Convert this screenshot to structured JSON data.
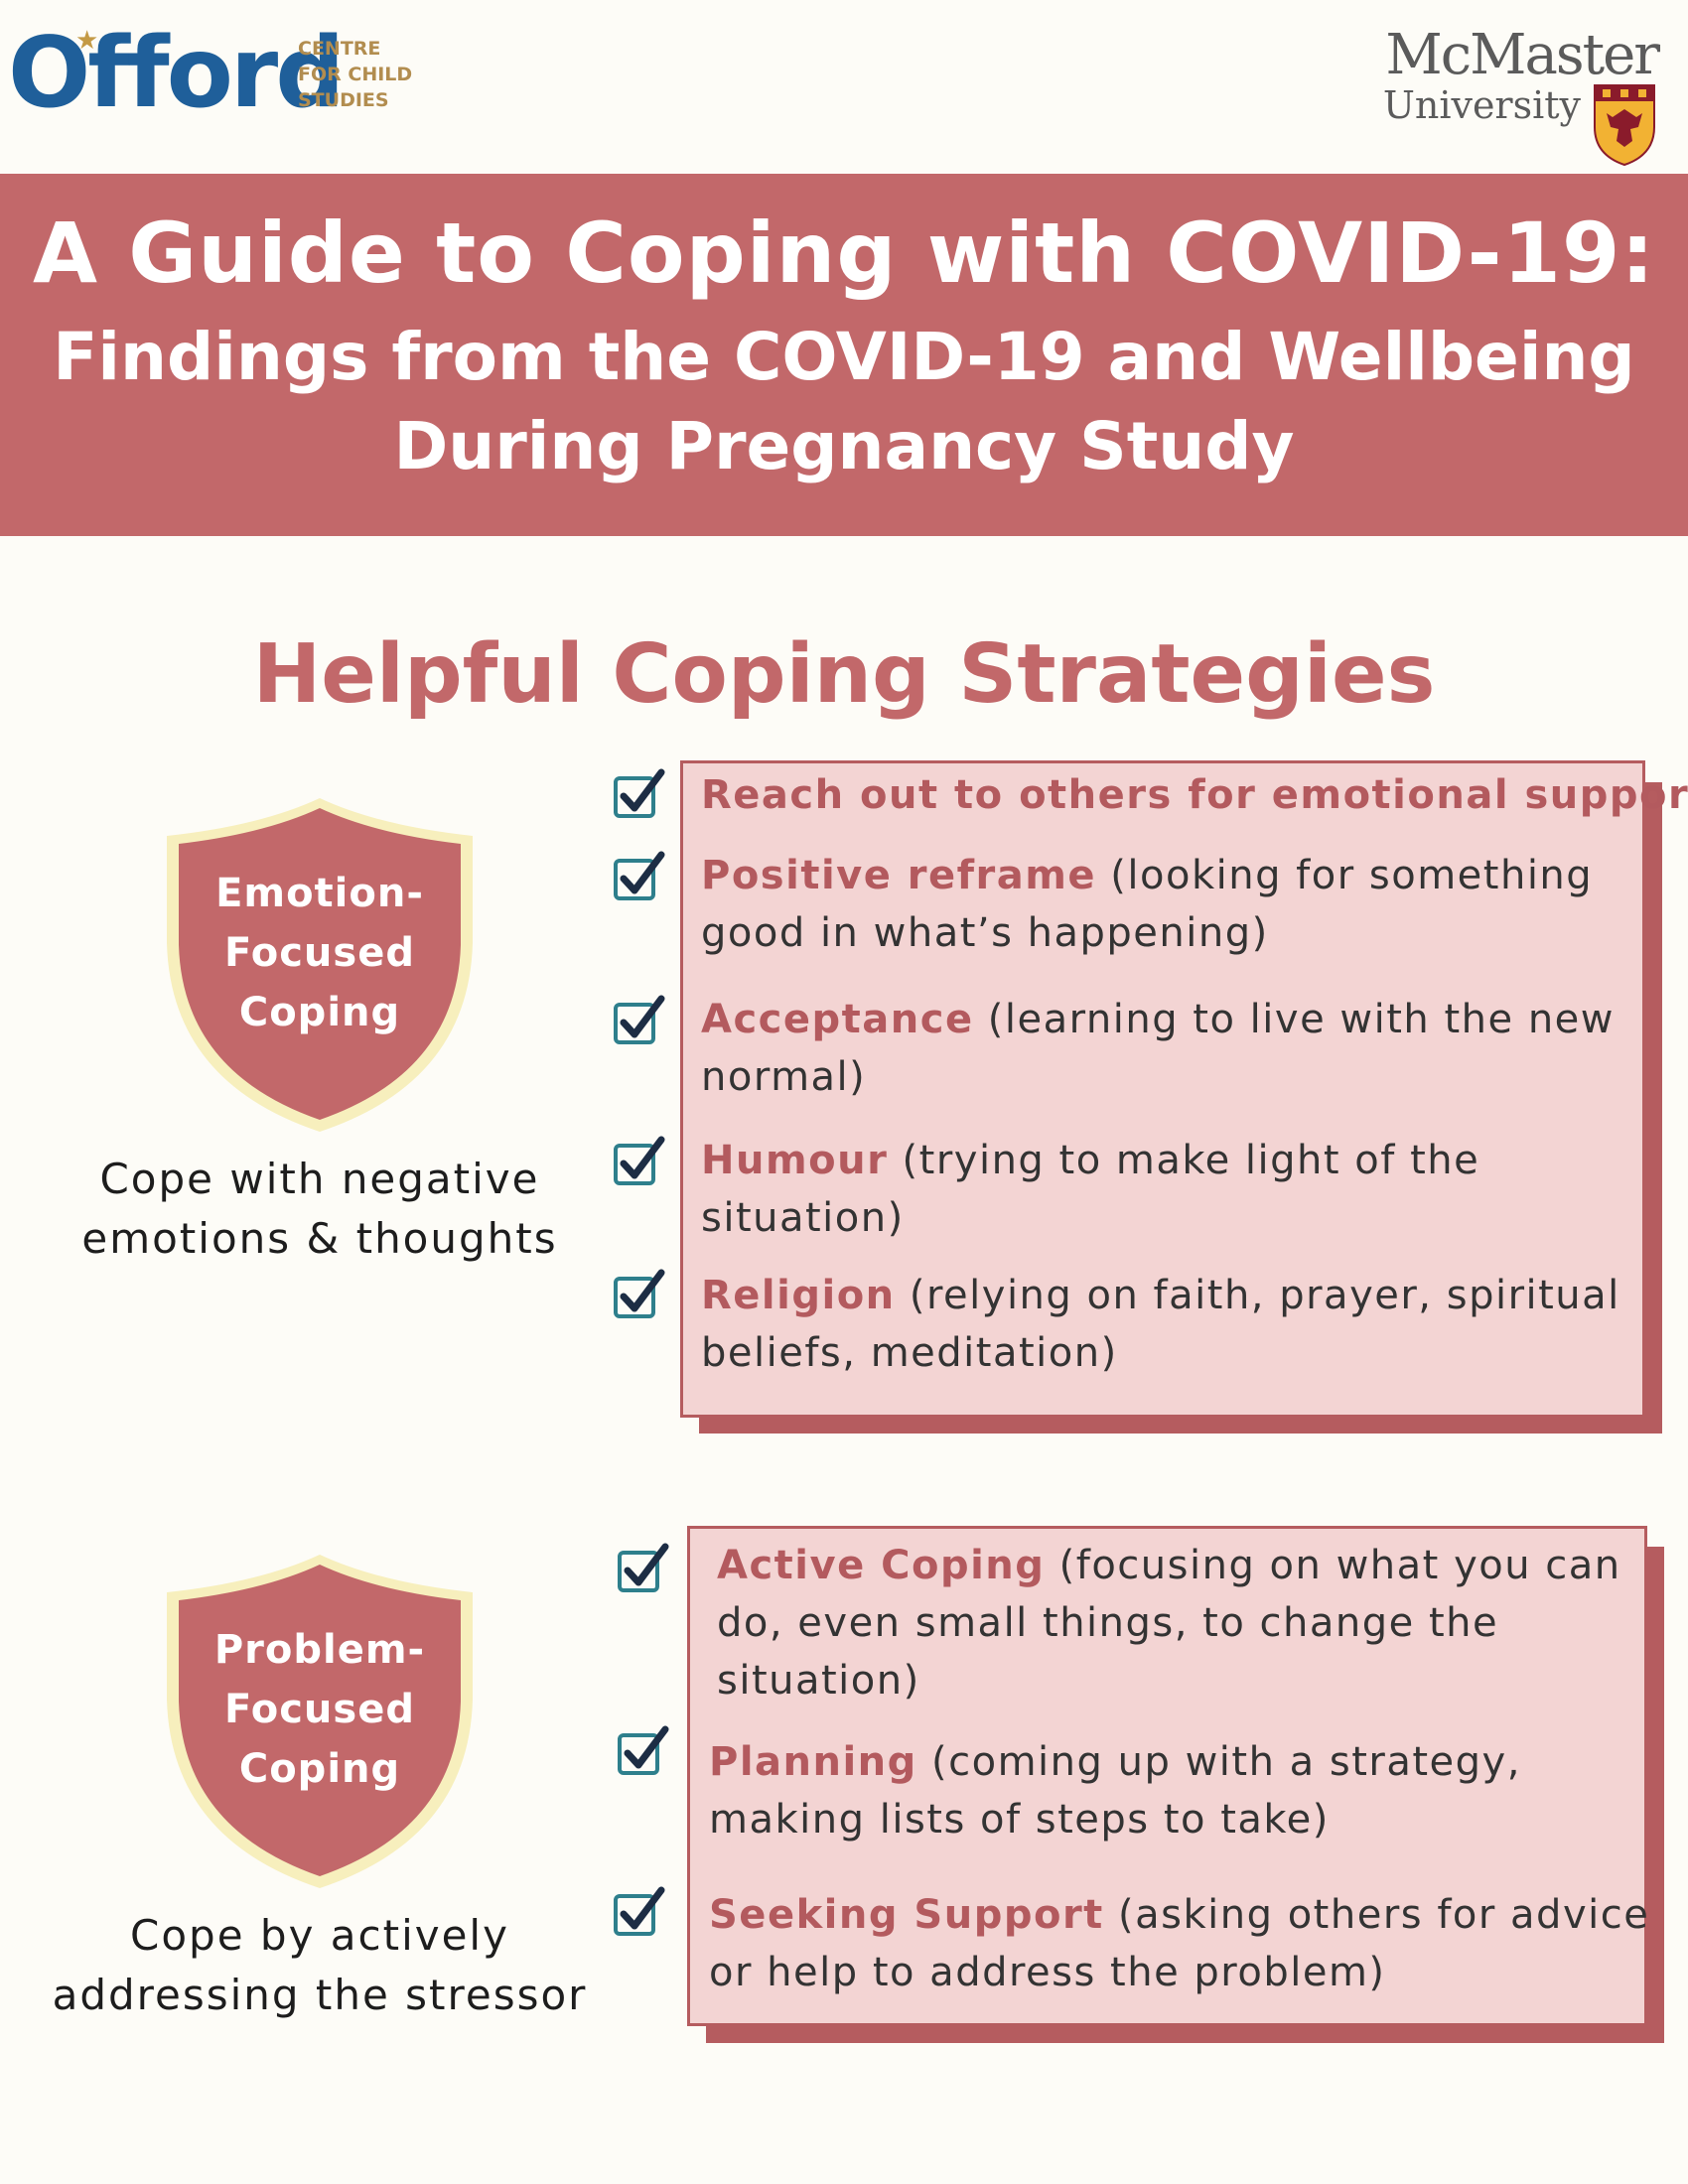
{
  "logos": {
    "offord": {
      "wordmark": "Offord",
      "subtitle_lines": [
        "CENTRE",
        "FOR CHILD",
        "STUDIES"
      ]
    },
    "mcmaster": {
      "name": "McMaster",
      "university": "University"
    }
  },
  "banner": {
    "title_line1": "A Guide to Coping with COVID-19:",
    "title_line2": "Findings from the COVID-19 and Wellbeing",
    "title_line3": "During Pregnancy Study"
  },
  "section_heading": "Helpful Coping Strategies",
  "emotion": {
    "shield_lines": [
      "Emotion-",
      "Focused",
      "Coping"
    ],
    "description_lines": [
      "Cope with negative",
      "emotions & thoughts"
    ],
    "items": [
      {
        "highlight": "Reach out to others for emotional support",
        "lines": []
      },
      {
        "highlight": "Positive reframe",
        "first_rest": " (looking for something",
        "lines": [
          "good in what’s happening)"
        ]
      },
      {
        "highlight": "Acceptance",
        "first_rest": " (learning to live with the new",
        "lines": [
          "normal)"
        ]
      },
      {
        "highlight": "Humour",
        "first_rest": " (trying to make light of the",
        "lines": [
          "situation)"
        ]
      },
      {
        "highlight": "Religion",
        "first_rest": " (relying on faith, prayer, spiritual",
        "lines": [
          "beliefs, meditation)"
        ]
      }
    ]
  },
  "problem": {
    "shield_lines": [
      "Problem-",
      "Focused",
      "Coping"
    ],
    "description_lines": [
      "Cope by actively",
      "addressing the stressor"
    ],
    "items": [
      {
        "highlight": "Active Coping",
        "first_rest": " (focusing on what you can",
        "lines": [
          "do, even small things, to change the",
          "situation)"
        ]
      },
      {
        "highlight": "Planning",
        "first_rest": " (coming up with a strategy,",
        "lines": [
          "making lists of steps to take)"
        ]
      },
      {
        "highlight": "Seeking Support",
        "first_rest": " (asking others for advice",
        "lines": [
          "or help to address the problem)"
        ]
      }
    ]
  },
  "colors": {
    "banner": "#c2686a",
    "accent_text": "#b35a5e",
    "box_fill": "#f3d4d3",
    "box_border": "#b55c5f",
    "shield_fill": "#c2686a",
    "shield_outline": "#f7efbd",
    "check_blue": "#2e7f8c",
    "check_dark": "#1d2d44"
  },
  "icons": {
    "checkbox": "checkbox-checked-icon",
    "shield": "shield-icon",
    "crest": "mcmaster-crest-icon"
  }
}
